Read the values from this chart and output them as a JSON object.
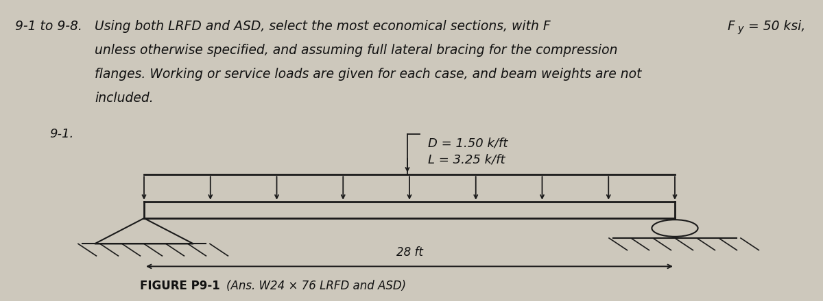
{
  "background_color": "#cdc8bc",
  "beam_color": "#1a1a1a",
  "text_color": "#111111",
  "header_line1a": "9-1 to 9-8.",
  "header_line1b": "Using both LRFD and ASD, select the most economical sections, with F",
  "header_sub_y": "y",
  "header_line1c": " = 50 ksi,",
  "header_line2": "unless otherwise specified, and assuming full lateral bracing for the compression",
  "header_line3": "flanges. Working or service loads are given for each case, and beam weights are not",
  "header_line4": "included.",
  "problem_label": "9-1.",
  "load_label_D": "D = 1.50 k/ft",
  "load_label_L": "L = 3.25 k/ft",
  "span_label": "28 ft",
  "figure_label": "FIGURE P9-1",
  "answer_label": "(Ans. W24 × 76 LRFD and ASD)",
  "font_size_header": 13.5,
  "font_size_body": 13,
  "font_size_small": 12
}
